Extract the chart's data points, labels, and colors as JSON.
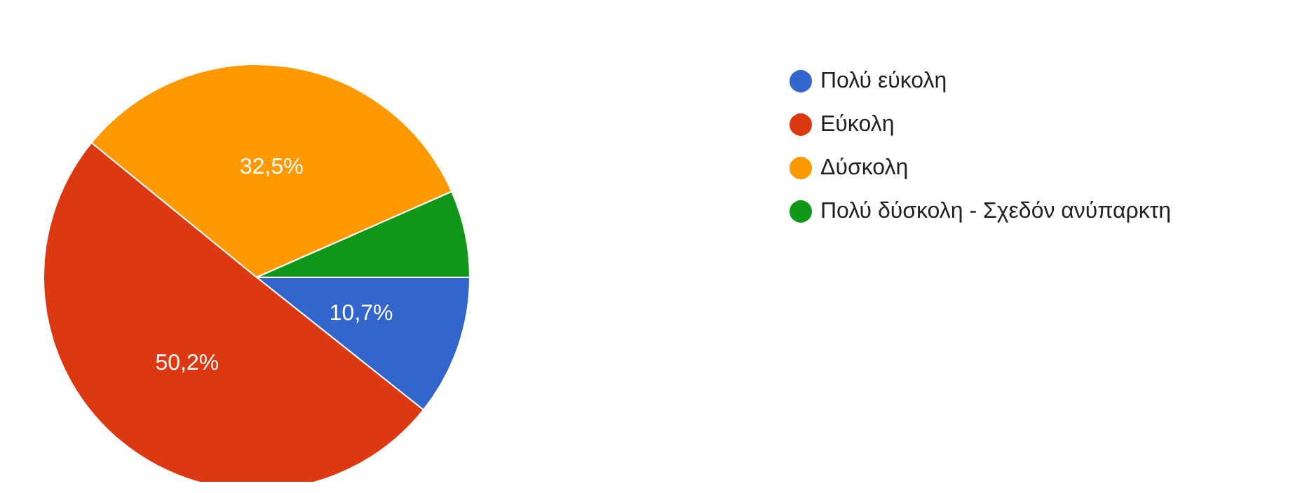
{
  "chart_data": {
    "type": "pie",
    "categories": [
      "Πολύ εύκολη",
      "Εύκολη",
      "Δύσκολη",
      "Πολύ δύσκολη - Σχεδόν ανύπαρκτη"
    ],
    "values": [
      10.7,
      50.2,
      32.5,
      6.6
    ],
    "value_labels": [
      "10,7%",
      "50,2%",
      "32,5%",
      null
    ],
    "colors": [
      "#3366cc",
      "#dc3912",
      "#ff9900",
      "#109618"
    ],
    "legend": "right"
  }
}
